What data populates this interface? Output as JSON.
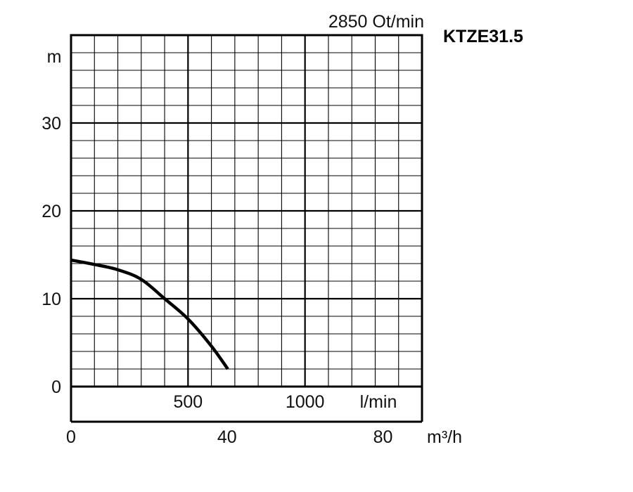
{
  "chart_data": {
    "type": "line",
    "title": "2850 Ot/min",
    "model": "KTZE31.5",
    "ylabel": "m",
    "x_unit_primary": "l/min",
    "x_unit_secondary": "m³/h",
    "ylim": [
      0,
      40
    ],
    "y_ticks": [
      0,
      10,
      20,
      30
    ],
    "x_lmin_range": [
      0,
      1500
    ],
    "x_lmin_ticks": [
      500,
      1000
    ],
    "x_m3h_range": [
      0,
      90
    ],
    "x_m3h_ticks": [
      0,
      40,
      80
    ],
    "grid": true,
    "series": [
      {
        "x_lmin": [
          0,
          100,
          200,
          300,
          400,
          500,
          600,
          670
        ],
        "y_m": [
          14.4,
          13.9,
          13.3,
          12.2,
          10.0,
          7.7,
          4.6,
          2.0
        ]
      }
    ],
    "colors": {
      "curve": "#000000",
      "grid": "#000000",
      "text": "#111111"
    }
  }
}
